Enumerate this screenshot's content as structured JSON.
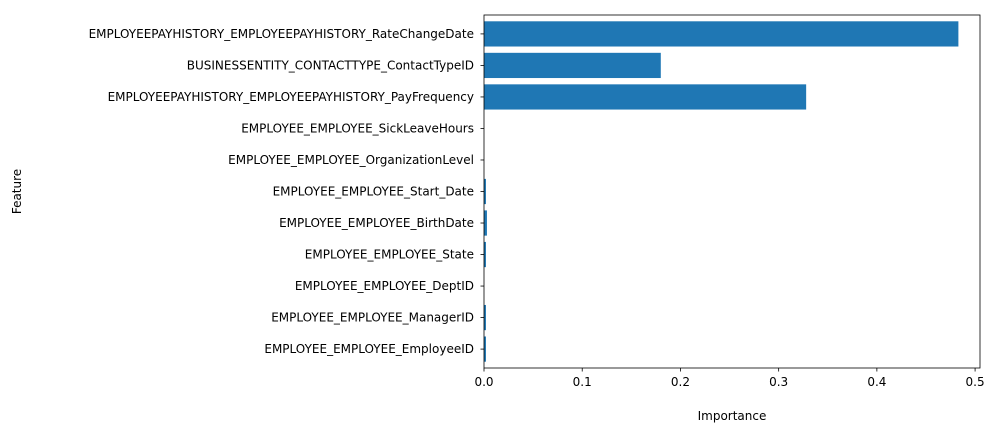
{
  "chart_data": {
    "type": "bar",
    "orientation": "horizontal",
    "xlabel": "Importance",
    "ylabel": "Feature",
    "xlim": [
      0,
      0.505
    ],
    "xticks": [
      0.0,
      0.1,
      0.2,
      0.3,
      0.4,
      0.5
    ],
    "xtick_labels": [
      "0.0",
      "0.1",
      "0.2",
      "0.3",
      "0.4",
      "0.5"
    ],
    "grid": false,
    "bar_color": "#1f77b4",
    "categories": [
      "EMPLOYEEPAYHISTORY_EMPLOYEEPAYHISTORY_RateChangeDate",
      "BUSINESSENTITY_CONTACTTYPE_ContactTypeID",
      "EMPLOYEEPAYHISTORY_EMPLOYEEPAYHISTORY_PayFrequency",
      "EMPLOYEE_EMPLOYEE_SickLeaveHours",
      "EMPLOYEE_EMPLOYEE_OrganizationLevel",
      "EMPLOYEE_EMPLOYEE_Start_Date",
      "EMPLOYEE_EMPLOYEE_BirthDate",
      "EMPLOYEE_EMPLOYEE_State",
      "EMPLOYEE_EMPLOYEE_DeptID",
      "EMPLOYEE_EMPLOYEE_ManagerID",
      "EMPLOYEE_EMPLOYEE_EmployeeID"
    ],
    "values": [
      0.483,
      0.18,
      0.328,
      0.0,
      0.0,
      0.002,
      0.003,
      0.002,
      0.0,
      0.002,
      0.002
    ]
  }
}
